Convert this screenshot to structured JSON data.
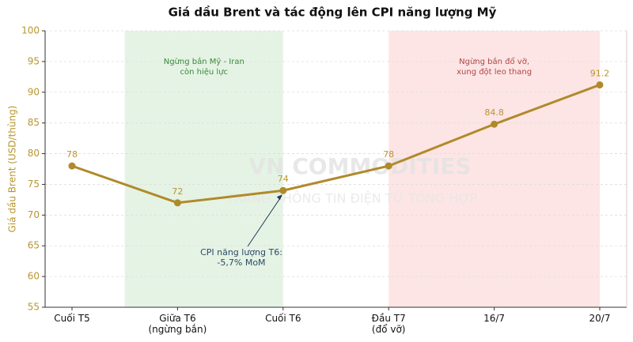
{
  "chart_data": {
    "type": "line",
    "title": "Giá dầu Brent và tác động lên CPI năng lượng Mỹ",
    "y_label": "Giá dầu Brent (USD/thùng)",
    "categories": [
      "Cuối T5",
      "Giữa T6\n(ngừng bắn)",
      "Cuối T6",
      "Đầu T7\n(đổ vỡ)",
      "16/7",
      "20/7"
    ],
    "series": [
      {
        "name": "Brent",
        "color": "#b08a2a",
        "values": [
          78,
          72,
          74,
          78,
          84.8,
          91.2
        ]
      }
    ],
    "ylim": [
      55,
      100
    ],
    "yticks": [
      55,
      60,
      65,
      70,
      75,
      80,
      85,
      90,
      95,
      100
    ],
    "grid": true,
    "regions": [
      {
        "label": "Ngừng bắn Mỹ - Iran\ncòn hiệu lực",
        "start": 0.5,
        "end": 2,
        "color": "#e5f3e5",
        "text_color": "#3a8a3a"
      },
      {
        "label": "Ngừng bắn đổ vỡ,\nxung đột leo thang",
        "start": 3,
        "end": 5,
        "color": "#fde5e5",
        "text_color": "#b04545"
      }
    ],
    "annotation": {
      "text": "CPI năng lượng T6:\n-5,7% MoM",
      "category": 2
    },
    "watermark": {
      "title": "VN COMMODITIES",
      "subtitle": "TRANG THÔNG TIN ĐIỆN TỬ TỔNG HỢP"
    }
  }
}
